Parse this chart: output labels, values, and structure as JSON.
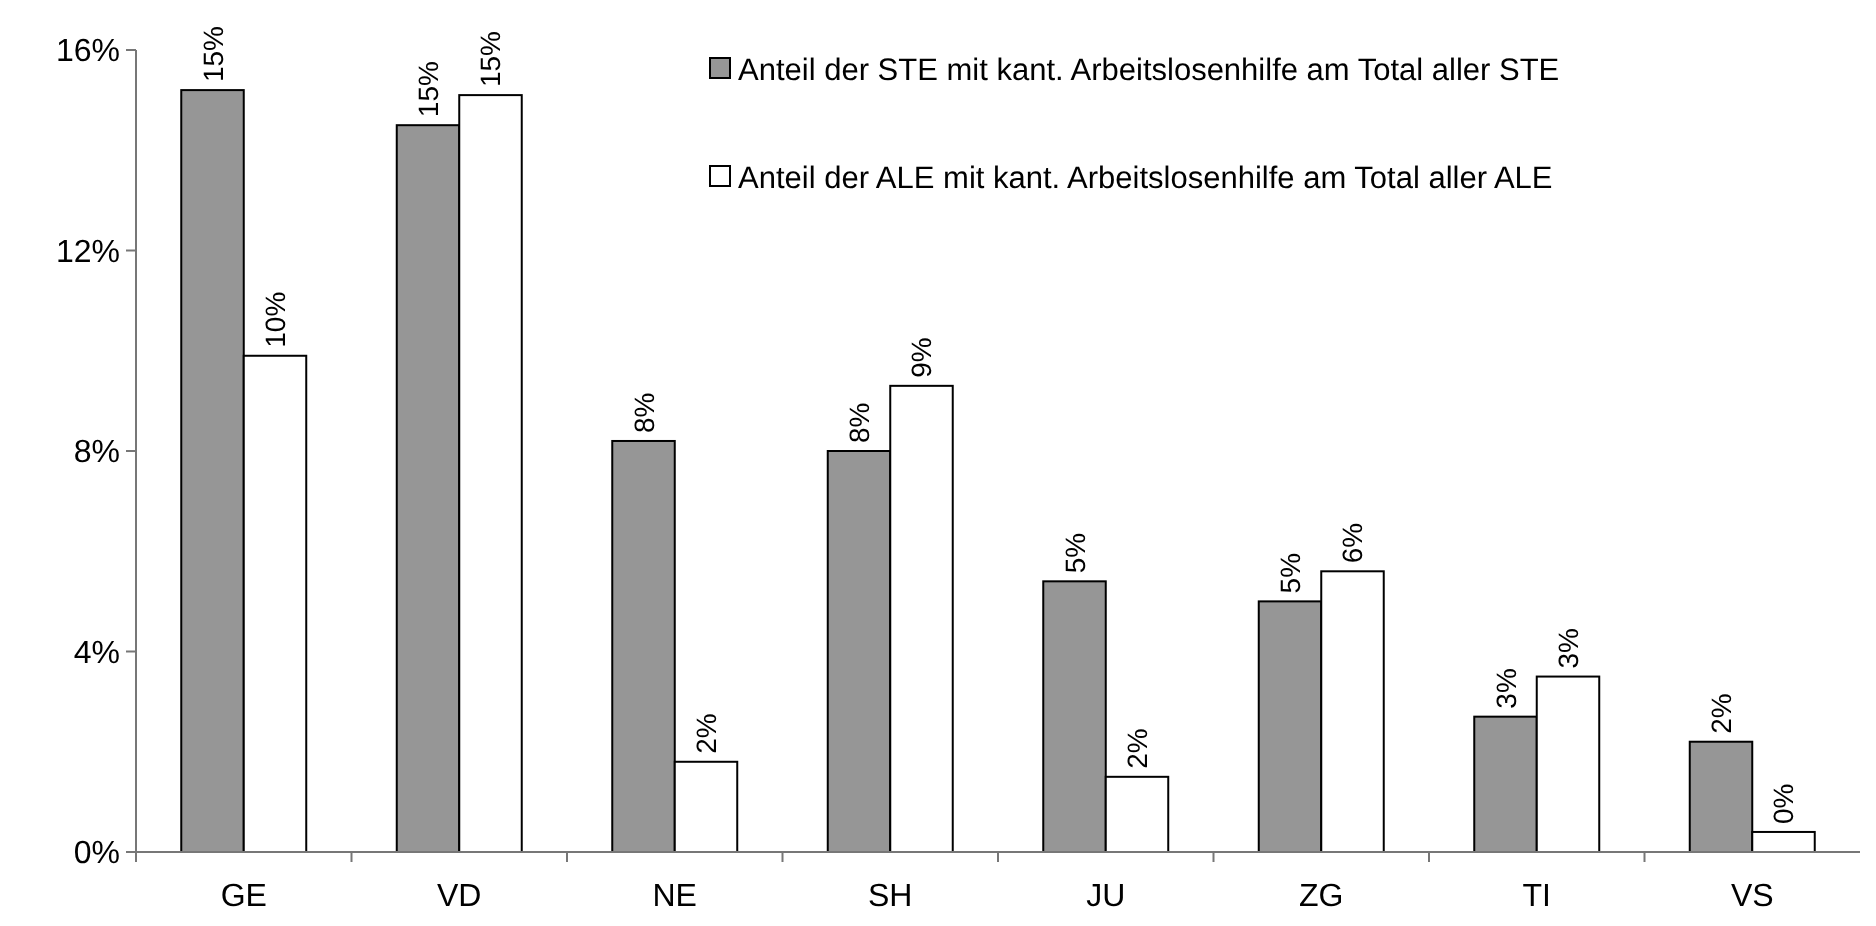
{
  "chart_data": {
    "type": "bar",
    "categories": [
      "GE",
      "VD",
      "NE",
      "SH",
      "JU",
      "ZG",
      "TI",
      "VS"
    ],
    "series": [
      {
        "name": "Anteil der STE mit kant. Arbeitslosenhilfe am Total aller STE",
        "color": "#969696",
        "values": [
          15.2,
          14.5,
          8.2,
          8.0,
          5.4,
          5.0,
          2.7,
          2.2
        ],
        "value_labels": [
          "15%",
          "15%",
          "8%",
          "8%",
          "5%",
          "5%",
          "3%",
          "2%"
        ]
      },
      {
        "name": "Anteil der ALE mit kant. Arbeitslosenhilfe am Total aller ALE",
        "color": "#ffffff",
        "values": [
          9.9,
          15.1,
          1.8,
          9.3,
          1.5,
          5.6,
          3.5,
          0.4
        ],
        "value_labels": [
          "10%",
          "15%",
          "2%",
          "9%",
          "2%",
          "6%",
          "3%",
          "0%"
        ]
      }
    ],
    "ylim": [
      0,
      16
    ],
    "yticks": [
      {
        "value": 0,
        "label": "0%"
      },
      {
        "value": 4,
        "label": "4%"
      },
      {
        "value": 8,
        "label": "8%"
      },
      {
        "value": 12,
        "label": "12%"
      },
      {
        "value": 16,
        "label": "16%"
      }
    ],
    "legend": "top right",
    "grid": false
  }
}
